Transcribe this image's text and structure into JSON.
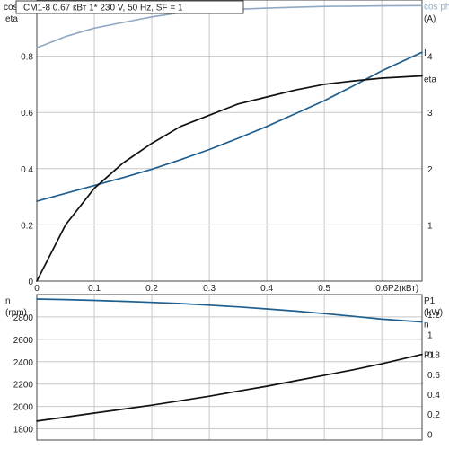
{
  "colors": {
    "cos_phi": "#8fa9c4",
    "current": "#1f5f8f",
    "eta": "#111111",
    "speed": "#1f5f8f",
    "power": "#111111",
    "grid": "#c8c8c8"
  },
  "title": "CM1-8     0.67 кВт    1* 230 V, 50 Hz, SF = 1",
  "chart_data": [
    {
      "type": "line",
      "x": [
        0.0,
        0.05,
        0.1,
        0.15,
        0.2,
        0.25,
        0.3,
        0.35,
        0.4,
        0.45,
        0.5,
        0.55,
        0.6,
        0.67
      ],
      "xlim": [
        0,
        0.67
      ],
      "xticks": [
        "0",
        "0.1",
        "0.2",
        "0.3",
        "0.4",
        "0.5",
        "0.6"
      ],
      "xlabel": "P2(кВт)",
      "left_axis": {
        "label_top": "cos phi",
        "label": "eta",
        "ylim": [
          0,
          1.0
        ],
        "ticks": [
          "0",
          "0.2",
          "0.4",
          "0.6",
          "0.8"
        ]
      },
      "right_axis": {
        "label_top": "I",
        "label": "(A)",
        "ylim": [
          0,
          5.0
        ],
        "ticks": [
          "1",
          "2",
          "3",
          "4"
        ]
      },
      "grid": true,
      "series": [
        {
          "name": "cos phi",
          "axis": "left",
          "values": [
            0.83,
            0.87,
            0.9,
            0.92,
            0.94,
            0.955,
            0.96,
            0.967,
            0.971,
            0.974,
            0.977,
            0.978,
            0.979,
            0.98
          ]
        },
        {
          "name": "I",
          "axis": "right",
          "values": [
            1.42,
            1.56,
            1.7,
            1.84,
            1.99,
            2.16,
            2.34,
            2.54,
            2.75,
            2.98,
            3.21,
            3.47,
            3.74,
            4.07
          ]
        },
        {
          "name": "eta",
          "axis": "left",
          "values": [
            0.0,
            0.2,
            0.33,
            0.42,
            0.49,
            0.55,
            0.59,
            0.63,
            0.655,
            0.68,
            0.7,
            0.712,
            0.722,
            0.73
          ]
        }
      ]
    },
    {
      "type": "line",
      "x": [
        0.0,
        0.05,
        0.1,
        0.15,
        0.2,
        0.25,
        0.3,
        0.35,
        0.4,
        0.45,
        0.5,
        0.55,
        0.6,
        0.67
      ],
      "xlim": [
        0,
        0.67
      ],
      "left_axis": {
        "label_top": "n",
        "label": "(rpm)",
        "ylim": [
          1700,
          3000
        ],
        "ticks": [
          "1800",
          "2000",
          "2200",
          "2400",
          "2600",
          "2800"
        ]
      },
      "right_axis": {
        "label_top": "P1",
        "label": "(kW)",
        "ylim": [
          -0.06,
          1.4
        ],
        "ticks": [
          "0",
          "0.2",
          "0.4",
          "0.6",
          "0.8",
          "1",
          "1.2"
        ]
      },
      "grid": true,
      "series": [
        {
          "name": "n",
          "axis": "left",
          "values": [
            2960,
            2955,
            2948,
            2940,
            2930,
            2920,
            2905,
            2890,
            2872,
            2852,
            2830,
            2806,
            2780,
            2755
          ]
        },
        {
          "name": "P1",
          "axis": "right",
          "values": [
            0.13,
            0.17,
            0.21,
            0.25,
            0.29,
            0.335,
            0.38,
            0.43,
            0.48,
            0.535,
            0.59,
            0.645,
            0.705,
            0.8
          ]
        }
      ]
    }
  ]
}
